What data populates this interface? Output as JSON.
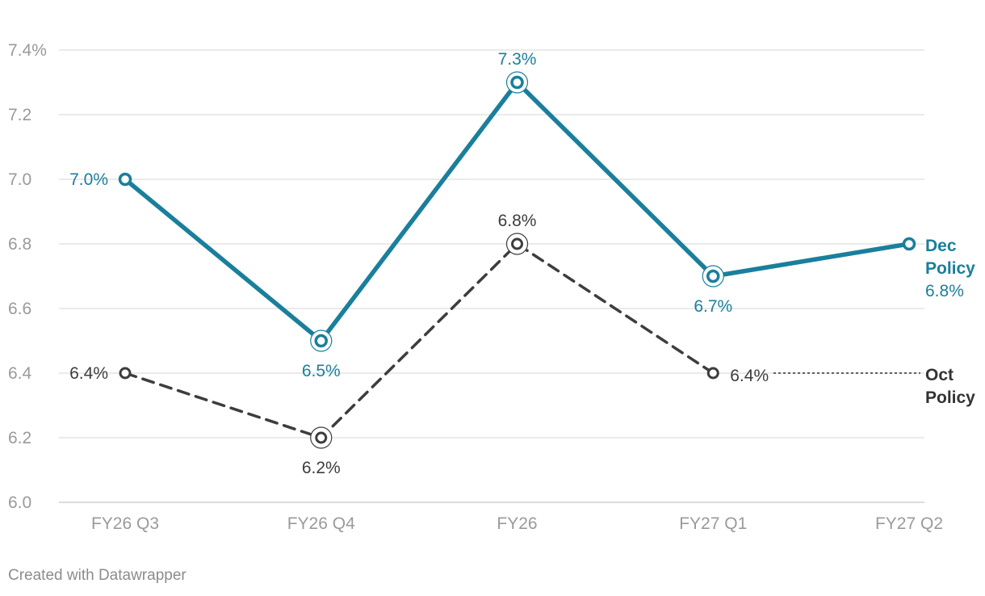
{
  "chart_data": {
    "type": "line",
    "categories": [
      "FY26 Q3",
      "FY26 Q4",
      "FY26",
      "FY27 Q1",
      "FY27 Q2"
    ],
    "ylim": [
      6.0,
      7.4
    ],
    "yticks": [
      6.0,
      6.2,
      6.4,
      6.6,
      6.8,
      7.0,
      7.2,
      7.4
    ],
    "ytick_labels": [
      "6.0",
      "6.2",
      "6.4",
      "6.6",
      "6.8",
      "7.0",
      "7.2",
      "7.4%"
    ],
    "grid": true,
    "series": [
      {
        "name": "Dec Policy",
        "label_lines": [
          "Dec",
          "Policy"
        ],
        "end_value_label": "6.8%",
        "color": "#1a7f9c",
        "dashed": false,
        "values": [
          7.0,
          6.5,
          7.3,
          6.7,
          6.8
        ],
        "point_labels": [
          "7.0%",
          "6.5%",
          "7.3%",
          "6.7%",
          null
        ],
        "label_pos": [
          "left",
          "below",
          "above",
          "below",
          null
        ],
        "highlight": [
          false,
          true,
          true,
          true,
          false
        ]
      },
      {
        "name": "Oct Policy",
        "label_lines": [
          "Oct",
          "Policy"
        ],
        "end_value_label": null,
        "color": "#3d3d3d",
        "dashed": true,
        "values": [
          6.4,
          6.2,
          6.8,
          6.4,
          null
        ],
        "point_labels": [
          "6.4%",
          "6.2%",
          "6.8%",
          "6.4%",
          null
        ],
        "label_pos": [
          "left",
          "below",
          "above",
          "right",
          null
        ],
        "highlight": [
          false,
          true,
          true,
          false,
          false
        ]
      }
    ]
  },
  "footer": "Created with Datawrapper"
}
